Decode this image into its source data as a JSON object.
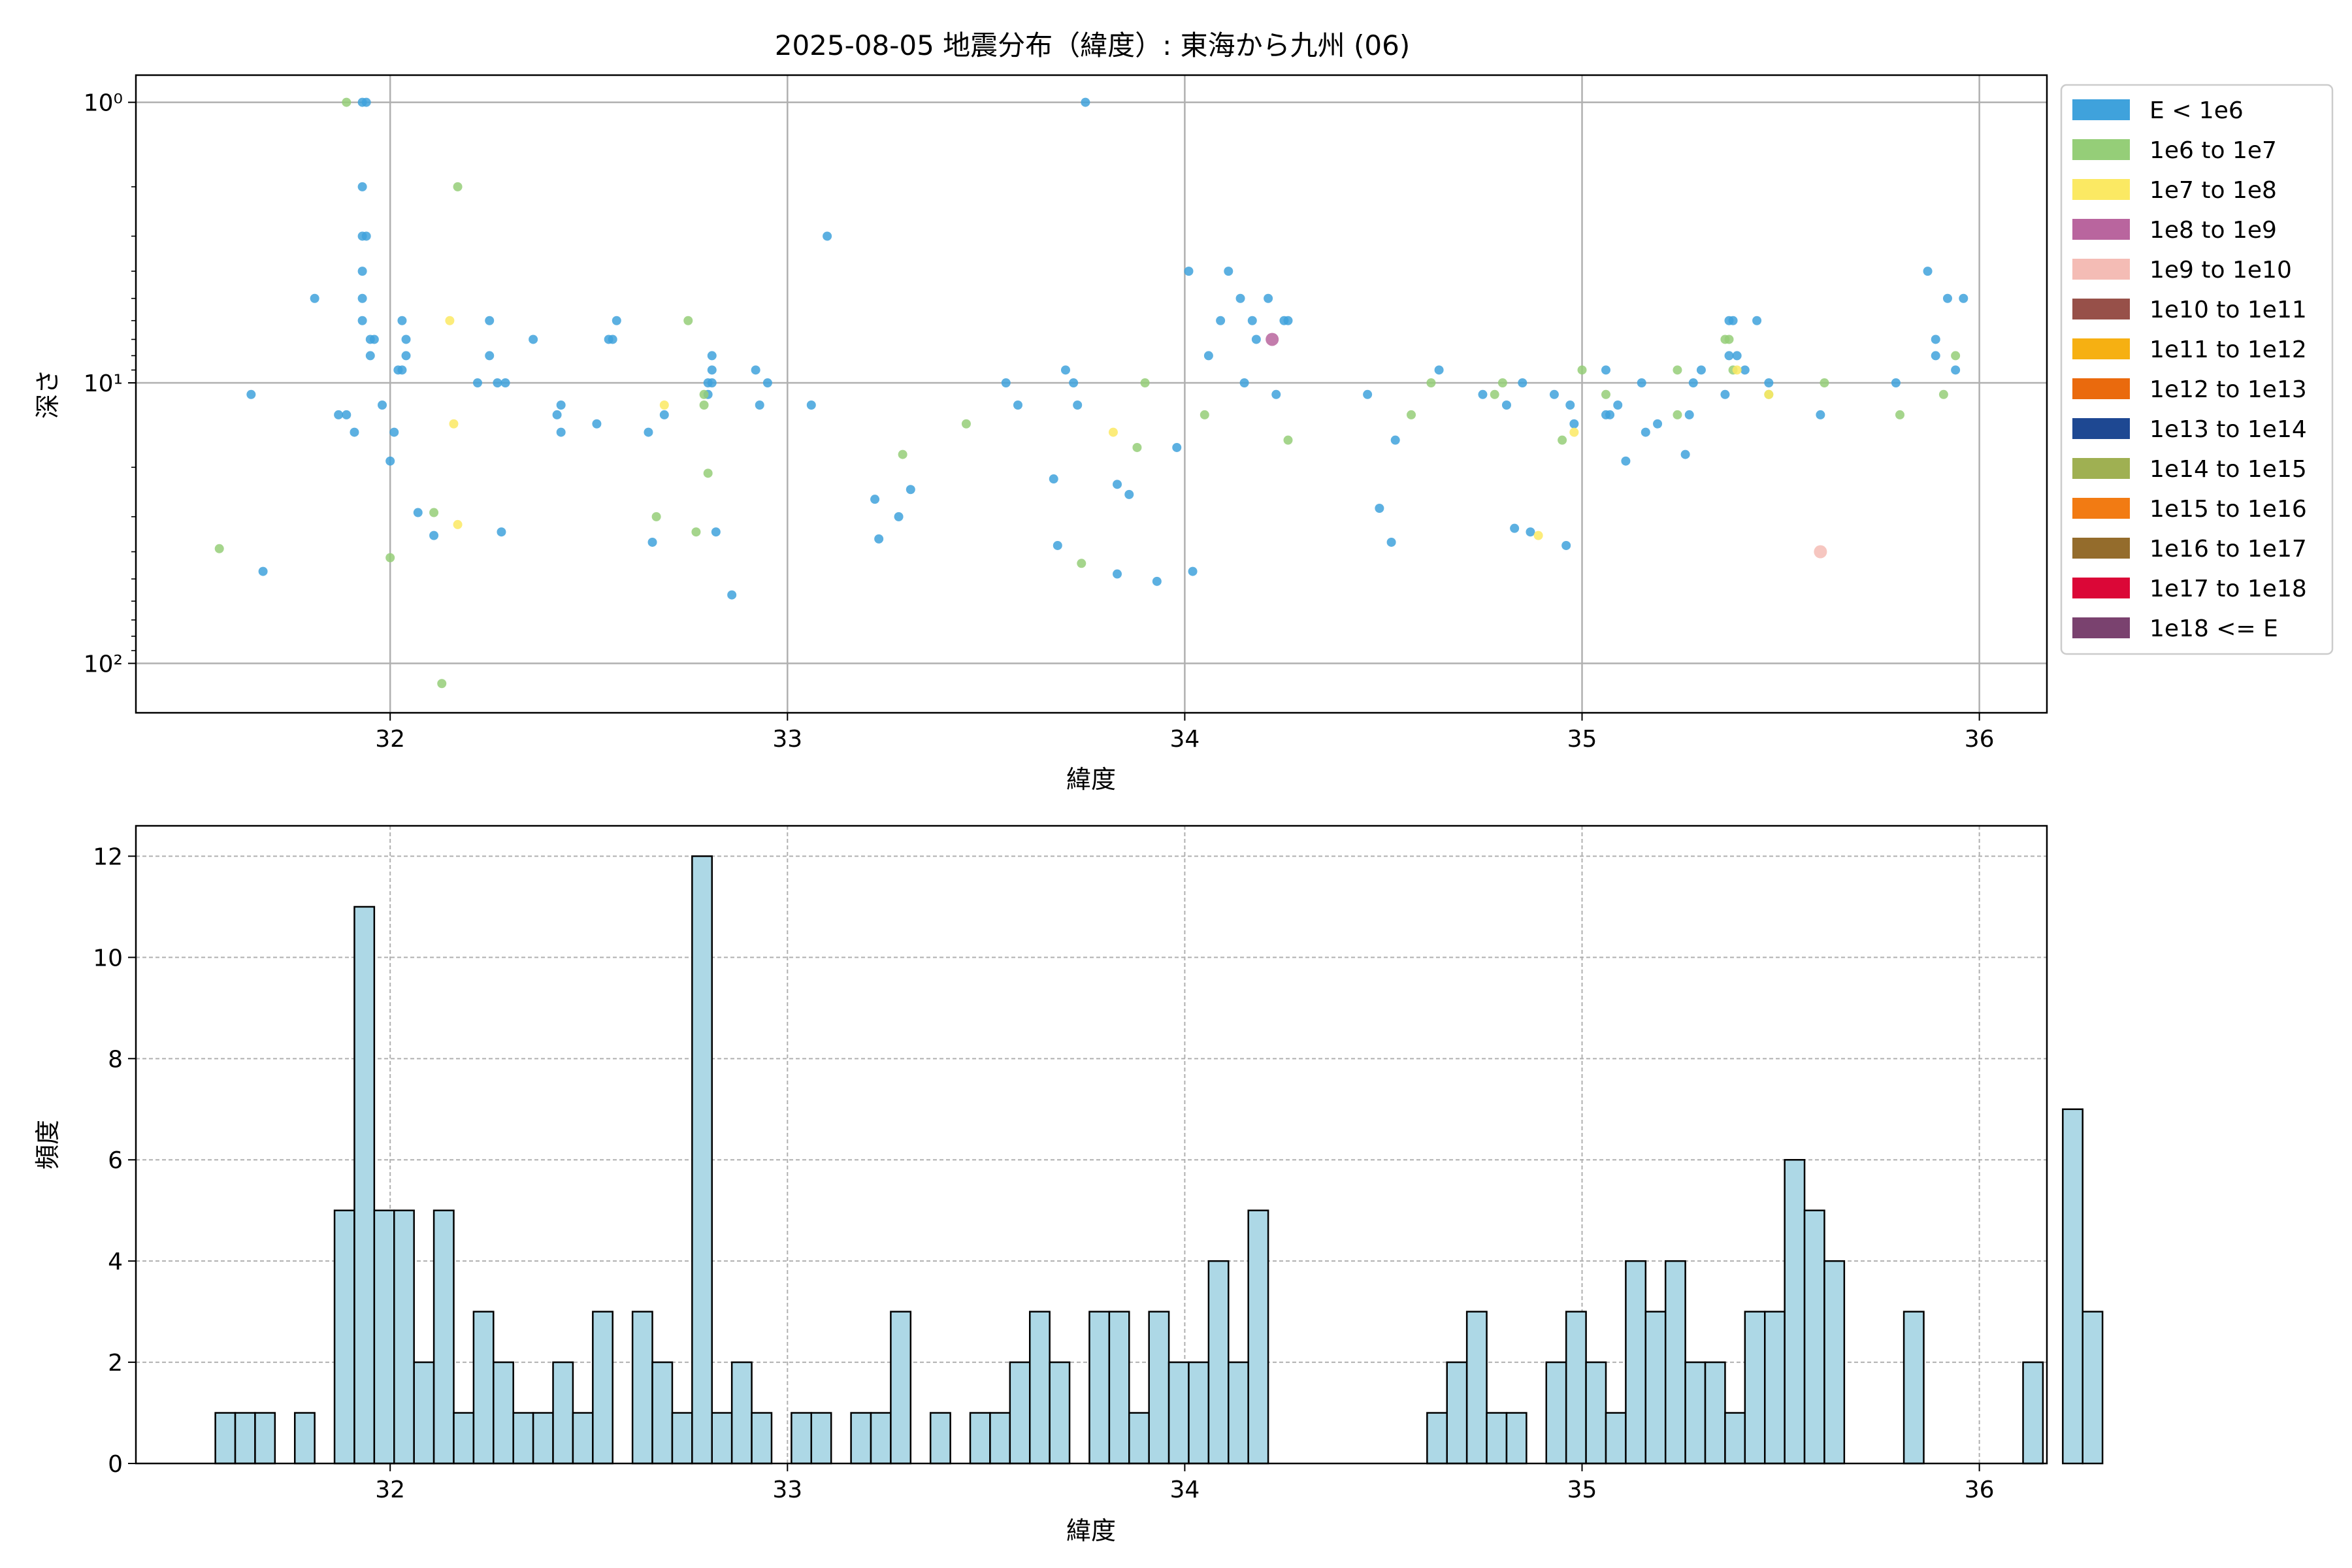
{
  "title": "2025-08-05 地震分布（緯度）: 東海から九州 (06)",
  "legend": {
    "placement": "right",
    "entries": [
      {
        "label": "E < 1e6",
        "color": "#3fa2dc"
      },
      {
        "label": "1e6 to 1e7",
        "color": "#95ce78"
      },
      {
        "label": "1e7 to 1e8",
        "color": "#fbe963"
      },
      {
        "label": "1e8 to 1e9",
        "color": "#b9659e"
      },
      {
        "label": "1e9 to 1e10",
        "color": "#f4bcb5"
      },
      {
        "label": "1e10 to 1e11",
        "color": "#975049"
      },
      {
        "label": "1e11 to 1e12",
        "color": "#f6b012"
      },
      {
        "label": "1e12 to 1e13",
        "color": "#ea6a0d"
      },
      {
        "label": "1e13 to 1e14",
        "color": "#1e4892"
      },
      {
        "label": "1e14 to 1e15",
        "color": "#9fb052"
      },
      {
        "label": "1e15 to 1e16",
        "color": "#f27b13"
      },
      {
        "label": "1e16 to 1e17",
        "color": "#946c2c"
      },
      {
        "label": "1e17 to 1e18",
        "color": "#db0737"
      },
      {
        "label": "1e18 <= E",
        "color": "#7a426f"
      }
    ]
  },
  "chart_data": [
    {
      "type": "scatter",
      "xlabel": "緯度",
      "ylabel": "深さ",
      "xlim": [
        31.36,
        36.17
      ],
      "ylim": [
        150,
        0.8
      ],
      "yscale": "log",
      "y_inverted": true,
      "xticks": [
        "32",
        "33",
        "34",
        "35",
        "36"
      ],
      "yticks": [
        "10⁰",
        "10¹",
        "10²"
      ],
      "grid": true,
      "series": [
        {
          "name": "E < 1e6",
          "color": "#3fa2dc",
          "points": [
            [
              31.93,
              1
            ],
            [
              31.94,
              1
            ],
            [
              31.93,
              2
            ],
            [
              31.93,
              3
            ],
            [
              31.94,
              3
            ],
            [
              31.93,
              4
            ],
            [
              31.93,
              5
            ],
            [
              31.93,
              6
            ],
            [
              31.95,
              7
            ],
            [
              31.96,
              7
            ],
            [
              31.95,
              8
            ],
            [
              31.81,
              5
            ],
            [
              31.65,
              11
            ],
            [
              31.68,
              47
            ],
            [
              31.87,
              13
            ],
            [
              31.89,
              13
            ],
            [
              31.91,
              15
            ],
            [
              31.98,
              12
            ],
            [
              32.0,
              19
            ],
            [
              32.01,
              15
            ],
            [
              32.02,
              9
            ],
            [
              32.03,
              9
            ],
            [
              32.03,
              6
            ],
            [
              32.04,
              7
            ],
            [
              32.04,
              8
            ],
            [
              32.07,
              29
            ],
            [
              32.11,
              35
            ],
            [
              32.25,
              6
            ],
            [
              32.25,
              8
            ],
            [
              32.22,
              10
            ],
            [
              32.27,
              10
            ],
            [
              32.29,
              10
            ],
            [
              32.28,
              34
            ],
            [
              32.36,
              7
            ],
            [
              32.42,
              13
            ],
            [
              32.43,
              12
            ],
            [
              32.43,
              15
            ],
            [
              32.52,
              14
            ],
            [
              32.55,
              7
            ],
            [
              32.56,
              7
            ],
            [
              32.57,
              6
            ],
            [
              32.65,
              15
            ],
            [
              32.66,
              37
            ],
            [
              32.69,
              13
            ],
            [
              32.8,
              10
            ],
            [
              32.8,
              11
            ],
            [
              32.81,
              8
            ],
            [
              32.81,
              9
            ],
            [
              32.81,
              10
            ],
            [
              32.82,
              34
            ],
            [
              32.86,
              57
            ],
            [
              32.92,
              9
            ],
            [
              32.93,
              12
            ],
            [
              32.95,
              10
            ],
            [
              33.06,
              12
            ],
            [
              33.1,
              3
            ],
            [
              33.22,
              26
            ],
            [
              33.23,
              36
            ],
            [
              33.28,
              30
            ],
            [
              33.31,
              24
            ],
            [
              33.55,
              10
            ],
            [
              33.58,
              12
            ],
            [
              33.67,
              22
            ],
            [
              33.68,
              38
            ],
            [
              33.7,
              9
            ],
            [
              33.72,
              10
            ],
            [
              33.73,
              12
            ],
            [
              33.75,
              1
            ],
            [
              33.83,
              23
            ],
            [
              33.83,
              48
            ],
            [
              33.86,
              25
            ],
            [
              33.93,
              51
            ],
            [
              33.98,
              17
            ],
            [
              34.02,
              47
            ],
            [
              34.01,
              4
            ],
            [
              34.06,
              8
            ],
            [
              34.09,
              6
            ],
            [
              34.11,
              4
            ],
            [
              34.14,
              5
            ],
            [
              34.15,
              10
            ],
            [
              34.17,
              6
            ],
            [
              34.18,
              7
            ],
            [
              34.21,
              5
            ],
            [
              34.23,
              11
            ],
            [
              34.25,
              6
            ],
            [
              34.26,
              6
            ],
            [
              34.46,
              11
            ],
            [
              34.49,
              28
            ],
            [
              34.52,
              37
            ],
            [
              34.53,
              16
            ],
            [
              34.64,
              9
            ],
            [
              34.75,
              11
            ],
            [
              34.81,
              12
            ],
            [
              34.85,
              10
            ],
            [
              34.83,
              33
            ],
            [
              34.87,
              34
            ],
            [
              34.93,
              11
            ],
            [
              34.96,
              38
            ],
            [
              34.97,
              12
            ],
            [
              34.98,
              14
            ],
            [
              35.06,
              9
            ],
            [
              35.06,
              13
            ],
            [
              35.07,
              13
            ],
            [
              35.09,
              12
            ],
            [
              35.11,
              19
            ],
            [
              35.15,
              10
            ],
            [
              35.16,
              15
            ],
            [
              35.19,
              14
            ],
            [
              35.26,
              18
            ],
            [
              35.27,
              13
            ],
            [
              35.28,
              10
            ],
            [
              35.3,
              9
            ],
            [
              35.36,
              11
            ],
            [
              35.37,
              6
            ],
            [
              35.38,
              6
            ],
            [
              35.37,
              8
            ],
            [
              35.39,
              8
            ],
            [
              35.41,
              9
            ],
            [
              35.44,
              6
            ],
            [
              35.47,
              10
            ],
            [
              35.6,
              13
            ],
            [
              35.79,
              10
            ],
            [
              35.87,
              4
            ],
            [
              35.89,
              7
            ],
            [
              35.89,
              8
            ],
            [
              35.92,
              5
            ],
            [
              35.94,
              9
            ],
            [
              35.96,
              5
            ]
          ]
        },
        {
          "name": "1e6 to 1e7",
          "color": "#95ce78",
          "points": [
            [
              31.57,
              39
            ],
            [
              31.89,
              1
            ],
            [
              32.0,
              42
            ],
            [
              32.11,
              29
            ],
            [
              32.13,
              118
            ],
            [
              32.17,
              2
            ],
            [
              32.67,
              30
            ],
            [
              32.75,
              6
            ],
            [
              32.77,
              34
            ],
            [
              32.79,
              12
            ],
            [
              32.79,
              11
            ],
            [
              32.8,
              21
            ],
            [
              33.29,
              18
            ],
            [
              33.45,
              14
            ],
            [
              33.74,
              44
            ],
            [
              33.88,
              17
            ],
            [
              33.9,
              10
            ],
            [
              34.05,
              13
            ],
            [
              34.26,
              16
            ],
            [
              34.57,
              13
            ],
            [
              34.62,
              10
            ],
            [
              34.78,
              11
            ],
            [
              34.8,
              10
            ],
            [
              34.95,
              16
            ],
            [
              35.0,
              9
            ],
            [
              35.06,
              11
            ],
            [
              35.24,
              9
            ],
            [
              35.24,
              13
            ],
            [
              35.36,
              7
            ],
            [
              35.37,
              7
            ],
            [
              35.38,
              9
            ],
            [
              35.47,
              11
            ],
            [
              35.61,
              10
            ],
            [
              35.8,
              13
            ],
            [
              35.91,
              11
            ],
            [
              35.94,
              8
            ]
          ]
        },
        {
          "name": "1e7 to 1e8",
          "color": "#fbe963",
          "points": [
            [
              32.15,
              6
            ],
            [
              32.16,
              14
            ],
            [
              32.17,
              32
            ],
            [
              32.69,
              12
            ],
            [
              33.82,
              15
            ],
            [
              34.89,
              35
            ],
            [
              34.98,
              15
            ],
            [
              35.39,
              9
            ],
            [
              35.47,
              11
            ]
          ]
        },
        {
          "name": "1e8 to 1e9",
          "color": "#b9659e",
          "points": [
            [
              34.22,
              7
            ]
          ]
        },
        {
          "name": "1e9 to 1e10",
          "color": "#f4bcb5",
          "points": [
            [
              35.6,
              40
            ]
          ]
        }
      ]
    },
    {
      "type": "bar",
      "xlabel": "緯度",
      "ylabel": "頻度",
      "xlim": [
        31.36,
        36.17
      ],
      "ylim": [
        0,
        12.6
      ],
      "xticks": [
        "32",
        "33",
        "34",
        "35",
        "36"
      ],
      "yticks": [
        "0",
        "2",
        "4",
        "6",
        "8",
        "10",
        "12"
      ],
      "grid": true,
      "bin_start": 31.56,
      "bin_width": 0.05,
      "values": [
        1,
        1,
        1,
        0,
        1,
        0,
        5,
        11,
        5,
        5,
        2,
        5,
        1,
        3,
        2,
        1,
        1,
        2,
        1,
        3,
        0,
        3,
        2,
        1,
        12,
        1,
        2,
        1,
        0,
        1,
        1,
        0,
        1,
        1,
        3,
        0,
        1,
        0,
        1,
        1,
        2,
        3,
        2,
        0,
        3,
        3,
        1,
        3,
        2,
        2,
        4,
        2,
        5,
        0,
        0,
        0,
        0,
        0,
        0,
        0,
        0,
        1,
        2,
        3,
        1,
        1,
        0,
        2,
        3,
        2,
        1,
        4,
        3,
        4,
        2,
        2,
        1,
        3,
        3,
        6,
        5,
        4,
        0,
        0,
        0,
        3,
        0,
        0,
        0,
        0,
        0,
        2,
        0,
        7,
        3
      ]
    }
  ]
}
